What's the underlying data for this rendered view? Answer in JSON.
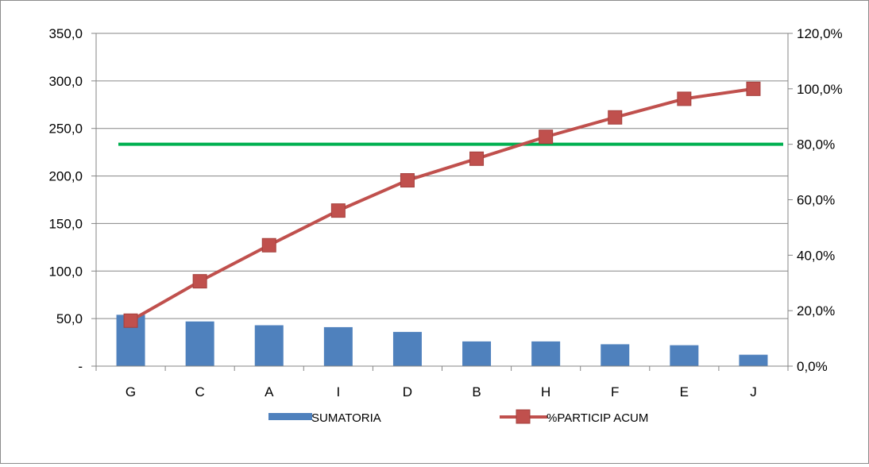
{
  "chart_data": {
    "type": "bar",
    "categories": [
      "G",
      "C",
      "A",
      "I",
      "D",
      "B",
      "H",
      "F",
      "E",
      "J"
    ],
    "series": [
      {
        "name": "SUMATORIA",
        "type": "bar",
        "axis": "left",
        "color": "#4f81bd",
        "values": [
          54,
          47,
          43,
          41,
          36,
          26,
          26,
          23,
          22,
          12
        ]
      },
      {
        "name": "%PARTICIP ACUM",
        "type": "line",
        "axis": "right",
        "color": "#c0504d",
        "marker": "square",
        "values": [
          16.4,
          30.6,
          43.6,
          56.1,
          67.0,
          74.8,
          82.7,
          89.7,
          96.4,
          100.0
        ]
      }
    ],
    "reference_line": {
      "axis": "right",
      "value": 80.0,
      "color": "#00b050"
    },
    "y_left": {
      "range": [
        0,
        350
      ],
      "ticks": [
        0,
        50,
        100,
        150,
        200,
        250,
        300,
        350
      ],
      "tick_labels": [
        "-",
        "50,0",
        "100,0",
        "150,0",
        "200,0",
        "250,0",
        "300,0",
        "350,0"
      ]
    },
    "y_right": {
      "range": [
        0,
        120
      ],
      "ticks": [
        0,
        20,
        40,
        60,
        80,
        100,
        120
      ],
      "tick_labels": [
        "0,0%",
        "20,0%",
        "40,0%",
        "60,0%",
        "80,0%",
        "100,0%",
        "120,0%"
      ]
    },
    "gridlines": true,
    "legend_position": "bottom",
    "grid_color": "#868686"
  }
}
